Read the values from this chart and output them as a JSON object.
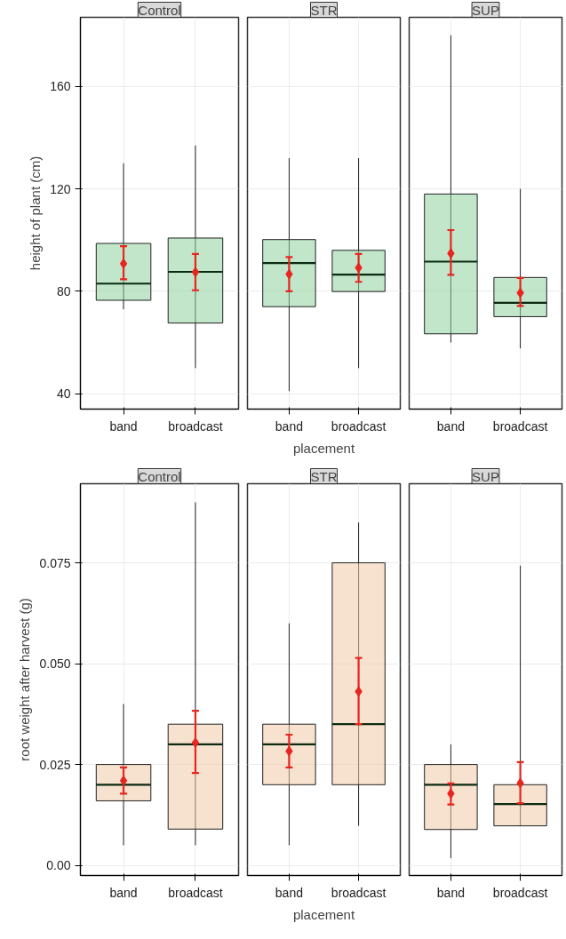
{
  "chart_data": [
    {
      "type": "box",
      "title": "Control",
      "ylabel": "height of plant (cm)",
      "categories": [
        "band",
        "broadcast"
      ],
      "ylim": [
        34,
        187
      ],
      "yticks": [
        40,
        80,
        120,
        160
      ],
      "grid": true,
      "marker": "diamond",
      "tick_labels": true,
      "series": [
        {
          "color": "#8fd19e",
          "boxes": [
            {
              "low": 73,
              "q1": 76.5,
              "median": 83,
              "q3": 98.7,
              "high": 130
            },
            {
              "low": 50,
              "q1": 67.6,
              "median": 87.6,
              "q3": 100.8,
              "high": 137
            }
          ]
        },
        {
          "type": "scatter",
          "color": "#e8251f",
          "x": [
            "band",
            "broadcast"
          ],
          "values": [
            90.8,
            87.5
          ],
          "errors": [
            [
              84.7,
              97.6
            ],
            [
              80.4,
              94.6
            ]
          ]
        }
      ]
    },
    {
      "type": "box",
      "title": "STR",
      "xlabel": "placement",
      "categories": [
        "band",
        "broadcast"
      ],
      "ylim": [
        34,
        187
      ],
      "yticks": [
        40,
        80,
        120,
        160
      ],
      "grid": true,
      "marker": "diamond",
      "tick_labels": "x",
      "series": [
        {
          "color": "#8fd19e",
          "boxes": [
            {
              "low": 41,
              "q1": 74,
              "median": 91,
              "q3": 100.2,
              "high": 132
            },
            {
              "low": 50,
              "q1": 79.9,
              "median": 86.5,
              "q3": 96,
              "high": 132
            }
          ]
        },
        {
          "type": "scatter",
          "color": "#e8251f",
          "x": [
            "band",
            "broadcast"
          ],
          "values": [
            86.7,
            89.2
          ],
          "errors": [
            [
              80,
              93.4
            ],
            [
              83.7,
              94.6
            ]
          ]
        }
      ]
    },
    {
      "type": "box",
      "title": "SUP",
      "categories": [
        "band",
        "broadcast"
      ],
      "ylim": [
        34,
        187
      ],
      "yticks": [
        40,
        80,
        120,
        160
      ],
      "grid": true,
      "marker": "diamond",
      "tick_labels": "x",
      "series": [
        {
          "color": "#8fd19e",
          "boxes": [
            {
              "low": 60,
              "q1": 63.4,
              "median": 91.6,
              "q3": 118,
              "high": 180
            },
            {
              "low": 57.7,
              "q1": 70.1,
              "median": 75.5,
              "q3": 85.4,
              "high": 120
            }
          ]
        },
        {
          "type": "scatter",
          "color": "#e8251f",
          "x": [
            "band",
            "broadcast"
          ],
          "values": [
            94.8,
            79.4
          ],
          "errors": [
            [
              86.4,
              103.9
            ],
            [
              74.3,
              85.2
            ]
          ]
        }
      ]
    },
    {
      "type": "box",
      "title": "Control",
      "ylabel": "root weight after harvest (g)",
      "categories": [
        "band",
        "broadcast"
      ],
      "ylim": [
        -0.0025,
        0.0946
      ],
      "yticks": [
        {
          "value": 0,
          "label": "0.00"
        },
        {
          "value": 0.025,
          "label": "0.025"
        },
        {
          "value": 0.05,
          "label": "0.050"
        },
        {
          "value": 0.075,
          "label": "0.075"
        }
      ],
      "grid": true,
      "marker": "diamond",
      "tick_labels": true,
      "series": [
        {
          "color": "#f0c8a8",
          "boxes": [
            {
              "low": 0.005,
              "q1": 0.016,
              "median": 0.02,
              "q3": 0.025,
              "high": 0.04
            },
            {
              "low": 0.005,
              "q1": 0.009,
              "median": 0.03,
              "q3": 0.035,
              "high": 0.09
            }
          ]
        },
        {
          "type": "scatter",
          "color": "#e8251f",
          "x": [
            "band",
            "broadcast"
          ],
          "values": [
            0.021,
            0.0304
          ],
          "errors": [
            [
              0.0178,
              0.0243
            ],
            [
              0.0229,
              0.0383
            ]
          ]
        }
      ]
    },
    {
      "type": "box",
      "title": "STR",
      "xlabel": "placement",
      "categories": [
        "band",
        "broadcast"
      ],
      "ylim": [
        -0.0025,
        0.0946
      ],
      "yticks": [
        0,
        0.025,
        0.05,
        0.075
      ],
      "grid": true,
      "marker": "diamond",
      "tick_labels": "x",
      "series": [
        {
          "color": "#f0c8a8",
          "boxes": [
            {
              "low": 0.005,
              "q1": 0.02,
              "median": 0.03,
              "q3": 0.035,
              "high": 0.06
            },
            {
              "low": 0.0098,
              "q1": 0.02,
              "median": 0.035,
              "q3": 0.075,
              "high": 0.085
            }
          ]
        },
        {
          "type": "scatter",
          "color": "#e8251f",
          "x": [
            "band",
            "broadcast"
          ],
          "values": [
            0.0283,
            0.0431
          ],
          "errors": [
            [
              0.0243,
              0.0324
            ],
            [
              0.035,
              0.0514
            ]
          ]
        }
      ]
    },
    {
      "type": "box",
      "title": "SUP",
      "categories": [
        "band",
        "broadcast"
      ],
      "ylim": [
        -0.0025,
        0.0946
      ],
      "yticks": [
        0,
        0.025,
        0.05,
        0.075
      ],
      "grid": true,
      "marker": "diamond",
      "tick_labels": "x",
      "series": [
        {
          "color": "#f0c8a8",
          "boxes": [
            {
              "low": 0.0018,
              "q1": 0.0089,
              "median": 0.02,
              "q3": 0.025,
              "high": 0.03
            },
            {
              "low": 0.0098,
              "q1": 0.0098,
              "median": 0.0152,
              "q3": 0.02,
              "high": 0.0743
            }
          ]
        },
        {
          "type": "scatter",
          "color": "#e8251f",
          "x": [
            "band",
            "broadcast"
          ],
          "values": [
            0.0178,
            0.0204
          ],
          "errors": [
            [
              0.0151,
              0.0203
            ],
            [
              0.0154,
              0.0256
            ]
          ]
        }
      ]
    }
  ]
}
